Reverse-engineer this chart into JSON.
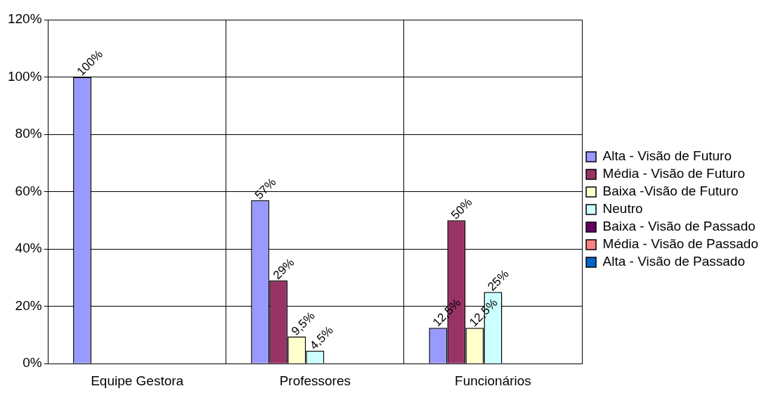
{
  "chart_data": {
    "type": "bar",
    "categories": [
      "Equipe Gestora",
      "Professores",
      "Funcionários"
    ],
    "series": [
      {
        "name": "Alta - Visão de Futuro",
        "color": "#9999ff",
        "values": [
          100,
          57,
          12.5
        ],
        "value_labels": [
          "100%",
          "57%",
          "12,5%"
        ]
      },
      {
        "name": "Média - Visão de Futuro",
        "color": "#993366",
        "values": [
          null,
          29,
          50
        ],
        "value_labels": [
          null,
          "29%",
          "50%"
        ]
      },
      {
        "name": "Baixa -Visão de Futuro",
        "color": "#ffffcc",
        "values": [
          null,
          9.5,
          12.5
        ],
        "value_labels": [
          null,
          "9,5%",
          "12,5%"
        ]
      },
      {
        "name": "Neutro",
        "color": "#ccffff",
        "values": [
          null,
          4.5,
          25
        ],
        "value_labels": [
          null,
          "4,5%",
          "25%"
        ]
      },
      {
        "name": "Baixa - Visão de Passado",
        "color": "#660066",
        "values": [
          null,
          null,
          null
        ]
      },
      {
        "name": "Média - Visão de Passado",
        "color": "#ff8080",
        "values": [
          null,
          null,
          null
        ]
      },
      {
        "name": "Alta - Visão de Passado",
        "color": "#0066cc",
        "values": [
          null,
          null,
          null
        ]
      }
    ],
    "ylim": [
      0,
      120
    ],
    "yticks": [
      {
        "value": 0,
        "label": "0%"
      },
      {
        "value": 20,
        "label": "20%"
      },
      {
        "value": 40,
        "label": "40%"
      },
      {
        "value": 60,
        "label": "60%"
      },
      {
        "value": 80,
        "label": "80%"
      },
      {
        "value": 100,
        "label": "100%"
      },
      {
        "value": 120,
        "label": "120%"
      }
    ],
    "grid": true,
    "legend": "right"
  }
}
